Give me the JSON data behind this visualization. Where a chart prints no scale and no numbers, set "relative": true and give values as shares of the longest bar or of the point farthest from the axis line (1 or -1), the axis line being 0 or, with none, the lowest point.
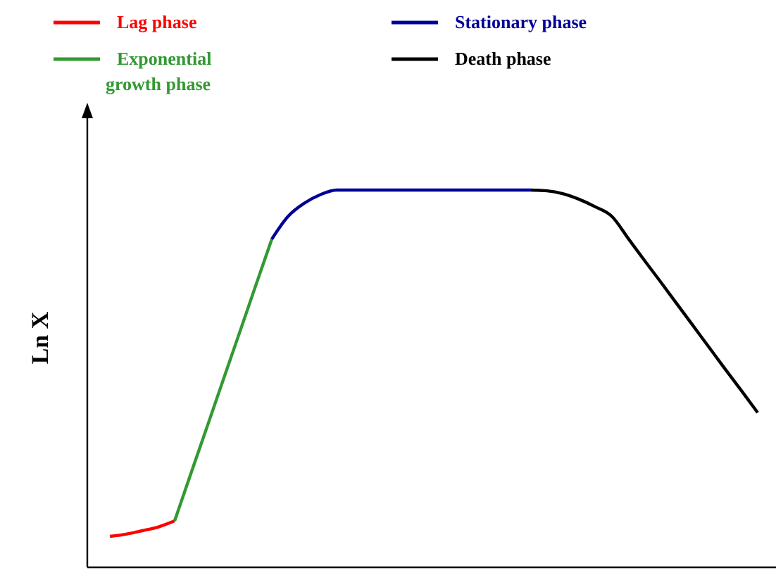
{
  "chart_data": {
    "type": "line",
    "relative": true,
    "ylabel": "Ln X",
    "legend": "top",
    "marker": "none",
    "line_style": "solid",
    "categories": [
      null,
      null,
      null,
      null,
      null,
      null,
      null,
      null,
      null,
      null,
      null,
      null,
      null,
      null,
      null,
      null,
      null,
      null,
      null,
      null,
      null,
      null,
      null,
      null,
      null,
      null,
      null,
      null,
      null,
      null,
      null,
      null,
      null,
      null,
      null,
      null,
      null,
      null,
      null,
      null,
      null
    ],
    "series": [
      {
        "name": "Lag phase",
        "color": "#ff0000",
        "values": [
          0.082,
          0.088,
          0.097,
          0.107,
          0.123,
          null,
          null,
          null,
          null,
          null,
          null,
          null,
          null,
          null,
          null,
          null,
          null,
          null,
          null,
          null,
          null,
          null,
          null,
          null,
          null,
          null,
          null,
          null,
          null,
          null,
          null,
          null,
          null,
          null,
          null,
          null,
          null,
          null,
          null,
          null,
          null
        ]
      },
      {
        "name": "Exponential growth phase",
        "color": "#339933",
        "values": [
          null,
          null,
          null,
          null,
          0.123,
          0.248,
          0.372,
          0.497,
          0.621,
          0.746,
          0.87,
          null,
          null,
          null,
          null,
          null,
          null,
          null,
          null,
          null,
          null,
          null,
          null,
          null,
          null,
          null,
          null,
          null,
          null,
          null,
          null,
          null,
          null,
          null,
          null,
          null,
          null,
          null,
          null,
          null,
          null
        ]
      },
      {
        "name": "Stationary phase",
        "color": "#000099",
        "values": [
          null,
          null,
          null,
          null,
          null,
          null,
          null,
          null,
          null,
          null,
          0.87,
          0.93,
          0.965,
          0.988,
          1,
          1,
          1,
          1,
          1,
          1,
          1,
          1,
          1,
          1,
          1,
          1,
          1,
          null,
          null,
          null,
          null,
          null,
          null,
          null,
          null,
          null,
          null,
          null,
          null,
          null,
          null
        ]
      },
      {
        "name": "Death phase",
        "color": "#000000",
        "values": [
          null,
          null,
          null,
          null,
          null,
          null,
          null,
          null,
          null,
          null,
          null,
          null,
          null,
          null,
          null,
          null,
          null,
          null,
          null,
          null,
          null,
          null,
          null,
          null,
          null,
          null,
          1,
          0.998,
          0.99,
          0.975,
          0.955,
          0.93,
          0.872,
          0.814,
          0.757,
          0.699,
          0.641,
          0.583,
          0.525,
          0.468,
          0.41
        ]
      }
    ]
  }
}
